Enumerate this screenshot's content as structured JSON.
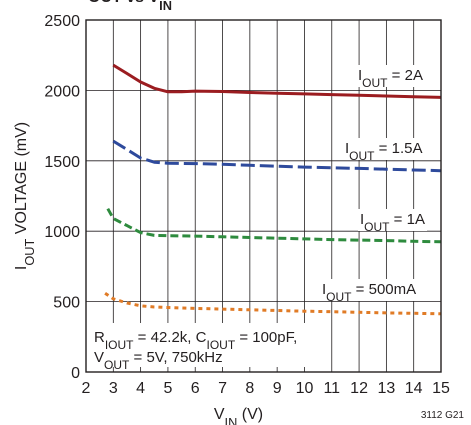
{
  "chart_data": {
    "type": "line",
    "title_fragment": "OUT        vs V",
    "title_fragment_subscript": "IN",
    "xlabel": "V",
    "xlabel_subscript": "IN",
    "xlabel_unit": " (V)",
    "ylabel": "I",
    "ylabel_subscript": "OUT",
    "ylabel_rest": " VOLTAGE (mV)",
    "xlim": [
      2,
      15
    ],
    "ylim": [
      0,
      2500
    ],
    "x_ticks": [
      "2",
      "3",
      "4",
      "5",
      "6",
      "7",
      "8",
      "9",
      "10",
      "11",
      "12",
      "13",
      "14",
      "15"
    ],
    "y_ticks": [
      "0",
      "500",
      "1000",
      "1500",
      "2000",
      "2500"
    ],
    "grid": true,
    "series": [
      {
        "name_main": "I",
        "name_sub": "OUT",
        "name_rest": " = 2A",
        "color": "#9b1c20",
        "dash": "solid",
        "points": [
          [
            3.0,
            2180
          ],
          [
            3.5,
            2120
          ],
          [
            4.0,
            2060
          ],
          [
            4.5,
            2015
          ],
          [
            5.0,
            1990
          ],
          [
            5.5,
            1990
          ],
          [
            6.0,
            1995
          ],
          [
            7.0,
            1992
          ],
          [
            8.0,
            1985
          ],
          [
            9.0,
            1980
          ],
          [
            10.0,
            1975
          ],
          [
            11.0,
            1970
          ],
          [
            12.0,
            1965
          ],
          [
            13.0,
            1960
          ],
          [
            14.0,
            1955
          ],
          [
            15.0,
            1950
          ]
        ]
      },
      {
        "name_main": "I",
        "name_sub": "OUT",
        "name_rest": " = 1.5A",
        "color": "#2e4a9c",
        "dash": "long",
        "points": [
          [
            3.0,
            1640
          ],
          [
            3.5,
            1580
          ],
          [
            4.0,
            1520
          ],
          [
            4.5,
            1490
          ],
          [
            5.0,
            1482
          ],
          [
            6.0,
            1480
          ],
          [
            7.0,
            1475
          ],
          [
            8.0,
            1468
          ],
          [
            9.0,
            1462
          ],
          [
            10.0,
            1455
          ],
          [
            11.0,
            1450
          ],
          [
            12.0,
            1446
          ],
          [
            13.0,
            1440
          ],
          [
            14.0,
            1435
          ],
          [
            15.0,
            1430
          ]
        ]
      },
      {
        "name_main": "I",
        "name_sub": "OUT",
        "name_rest": " = 1A",
        "color": "#2e8b3e",
        "dash": "medium",
        "points": [
          [
            2.8,
            1160
          ],
          [
            3.0,
            1090
          ],
          [
            3.5,
            1040
          ],
          [
            4.0,
            990
          ],
          [
            4.5,
            970
          ],
          [
            5.0,
            968
          ],
          [
            6.0,
            965
          ],
          [
            7.0,
            960
          ],
          [
            8.0,
            955
          ],
          [
            9.0,
            950
          ],
          [
            10.0,
            945
          ],
          [
            11.0,
            940
          ],
          [
            12.0,
            937
          ],
          [
            13.0,
            933
          ],
          [
            14.0,
            928
          ],
          [
            15.0,
            925
          ]
        ]
      },
      {
        "name_main": "I",
        "name_sub": "OUT",
        "name_rest": " = 500mA",
        "color": "#e07b26",
        "dash": "short",
        "points": [
          [
            2.7,
            560
          ],
          [
            3.0,
            520
          ],
          [
            3.5,
            490
          ],
          [
            4.0,
            470
          ],
          [
            4.5,
            462
          ],
          [
            5.0,
            458
          ],
          [
            6.0,
            452
          ],
          [
            7.0,
            447
          ],
          [
            8.0,
            442
          ],
          [
            9.0,
            437
          ],
          [
            10.0,
            432
          ],
          [
            11.0,
            428
          ],
          [
            12.0,
            424
          ],
          [
            13.0,
            420
          ],
          [
            14.0,
            417
          ],
          [
            15.0,
            413
          ]
        ]
      }
    ],
    "annotation": {
      "line1_parts": [
        {
          "t": "R",
          "sub": false
        },
        {
          "t": "IOUT",
          "sub": true
        },
        {
          "t": " = 42.2k, C",
          "sub": false
        },
        {
          "t": "IOUT",
          "sub": true
        },
        {
          "t": " = 100pF,",
          "sub": false
        }
      ],
      "line2_parts": [
        {
          "t": "V",
          "sub": false
        },
        {
          "t": "OUT",
          "sub": true
        },
        {
          "t": " = 5V, 750kHz",
          "sub": false
        }
      ]
    },
    "figure_code": "3112 G21"
  }
}
